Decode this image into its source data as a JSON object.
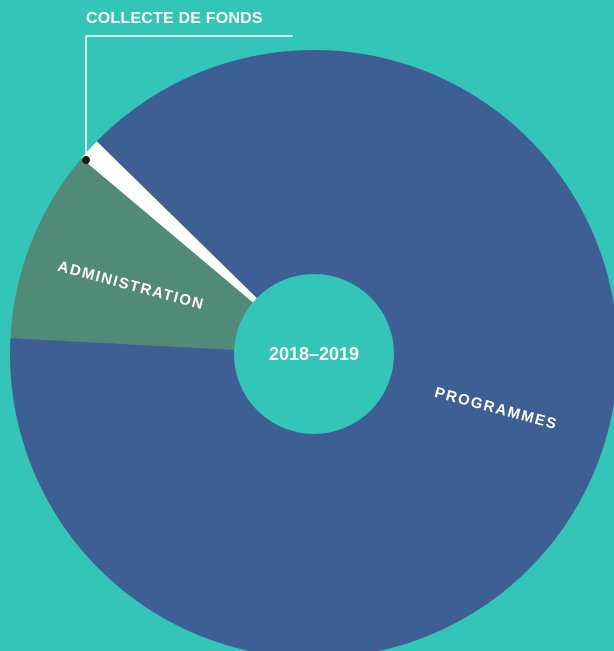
{
  "chart_data": {
    "type": "pie",
    "center_label": "2018–2019",
    "slices": [
      {
        "label": "COLLECTE DE FONDS",
        "value": 1.2,
        "color": "#ffffff"
      },
      {
        "label": "ADMINISTRATION",
        "value": 10.3,
        "color": "#528a78"
      },
      {
        "label": "PROGRAMMES",
        "value": 88.5,
        "color": "#3e5f93"
      }
    ],
    "background": "#33c5b8",
    "hole_color": "#33c5b8"
  }
}
